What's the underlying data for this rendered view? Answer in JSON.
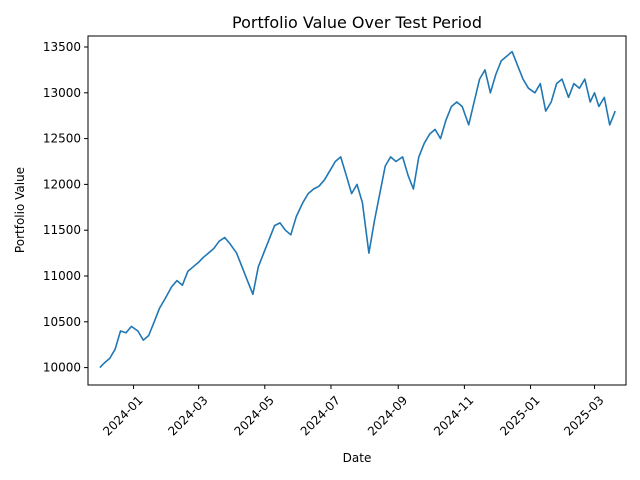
{
  "chart_data": {
    "type": "line",
    "title": "Portfolio Value Over Test Period",
    "xlabel": "Date",
    "ylabel": "Portfolio Value",
    "x_tick_labels": [
      "2024-01",
      "2024-03",
      "2024-05",
      "2024-07",
      "2024-09",
      "2024-11",
      "2025-01",
      "2025-03"
    ],
    "x_ticks": [
      "2024-01-01",
      "2024-03-01",
      "2024-05-01",
      "2024-07-01",
      "2024-09-01",
      "2024-11-01",
      "2025-01-01",
      "2025-03-01"
    ],
    "y_ticks": [
      10000,
      10500,
      11000,
      11500,
      12000,
      12500,
      13000,
      13500
    ],
    "xlim": [
      "2023-11-20",
      "2025-03-30"
    ],
    "ylim": [
      9810,
      13620
    ],
    "grid": false,
    "color": "#1f77b4",
    "series": [
      {
        "x": [
          "2023-12-01",
          "2023-12-05",
          "2023-12-10",
          "2023-12-15",
          "2023-12-20",
          "2023-12-25",
          "2023-12-30",
          "2024-01-05",
          "2024-01-10",
          "2024-01-15",
          "2024-01-20",
          "2024-01-25",
          "2024-01-30",
          "2024-02-05",
          "2024-02-10",
          "2024-02-15",
          "2024-02-20",
          "2024-02-25",
          "2024-03-01",
          "2024-03-05",
          "2024-03-10",
          "2024-03-15",
          "2024-03-20",
          "2024-03-25",
          "2024-03-30",
          "2024-04-05",
          "2024-04-10",
          "2024-04-15",
          "2024-04-20",
          "2024-04-25",
          "2024-04-30",
          "2024-05-05",
          "2024-05-10",
          "2024-05-15",
          "2024-05-20",
          "2024-05-25",
          "2024-05-30",
          "2024-06-05",
          "2024-06-10",
          "2024-06-15",
          "2024-06-20",
          "2024-06-25",
          "2024-06-30",
          "2024-07-05",
          "2024-07-10",
          "2024-07-15",
          "2024-07-20",
          "2024-07-25",
          "2024-07-30",
          "2024-08-05",
          "2024-08-10",
          "2024-08-15",
          "2024-08-20",
          "2024-08-25",
          "2024-08-30",
          "2024-09-05",
          "2024-09-10",
          "2024-09-15",
          "2024-09-20",
          "2024-09-25",
          "2024-09-30",
          "2024-10-05",
          "2024-10-10",
          "2024-10-15",
          "2024-10-20",
          "2024-10-25",
          "2024-10-30",
          "2024-11-05",
          "2024-11-10",
          "2024-11-15",
          "2024-11-20",
          "2024-11-25",
          "2024-11-30",
          "2024-12-05",
          "2024-12-10",
          "2024-12-15",
          "2024-12-20",
          "2024-12-25",
          "2024-12-30",
          "2025-01-05",
          "2025-01-10",
          "2025-01-15",
          "2025-01-20",
          "2025-01-25",
          "2025-01-30",
          "2025-02-05",
          "2025-02-10",
          "2025-02-15",
          "2025-02-20",
          "2025-02-25",
          "2025-03-01",
          "2025-03-05",
          "2025-03-10",
          "2025-03-15",
          "2025-03-20"
        ],
        "values": [
          10000,
          10050,
          10100,
          10200,
          10400,
          10380,
          10450,
          10400,
          10300,
          10350,
          10500,
          10650,
          10750,
          10880,
          10950,
          10900,
          11050,
          11100,
          11150,
          11200,
          11250,
          11300,
          11380,
          11420,
          11350,
          11250,
          11100,
          10950,
          10800,
          11100,
          11250,
          11400,
          11550,
          11580,
          11500,
          11450,
          11650,
          11800,
          11900,
          11950,
          11980,
          12050,
          12150,
          12250,
          12300,
          12100,
          11900,
          12000,
          11800,
          11250,
          11600,
          11900,
          12200,
          12300,
          12250,
          12300,
          12100,
          11950,
          12300,
          12450,
          12550,
          12600,
          12500,
          12700,
          12850,
          12900,
          12850,
          12650,
          12900,
          13150,
          13250,
          13000,
          13200,
          13350,
          13400,
          13450,
          13300,
          13150,
          13050,
          13000,
          13100,
          12800,
          12900,
          13100,
          13150,
          12950,
          13100,
          13050,
          13150,
          12900,
          13000,
          12850,
          12950,
          12650,
          12800
        ]
      }
    ]
  }
}
